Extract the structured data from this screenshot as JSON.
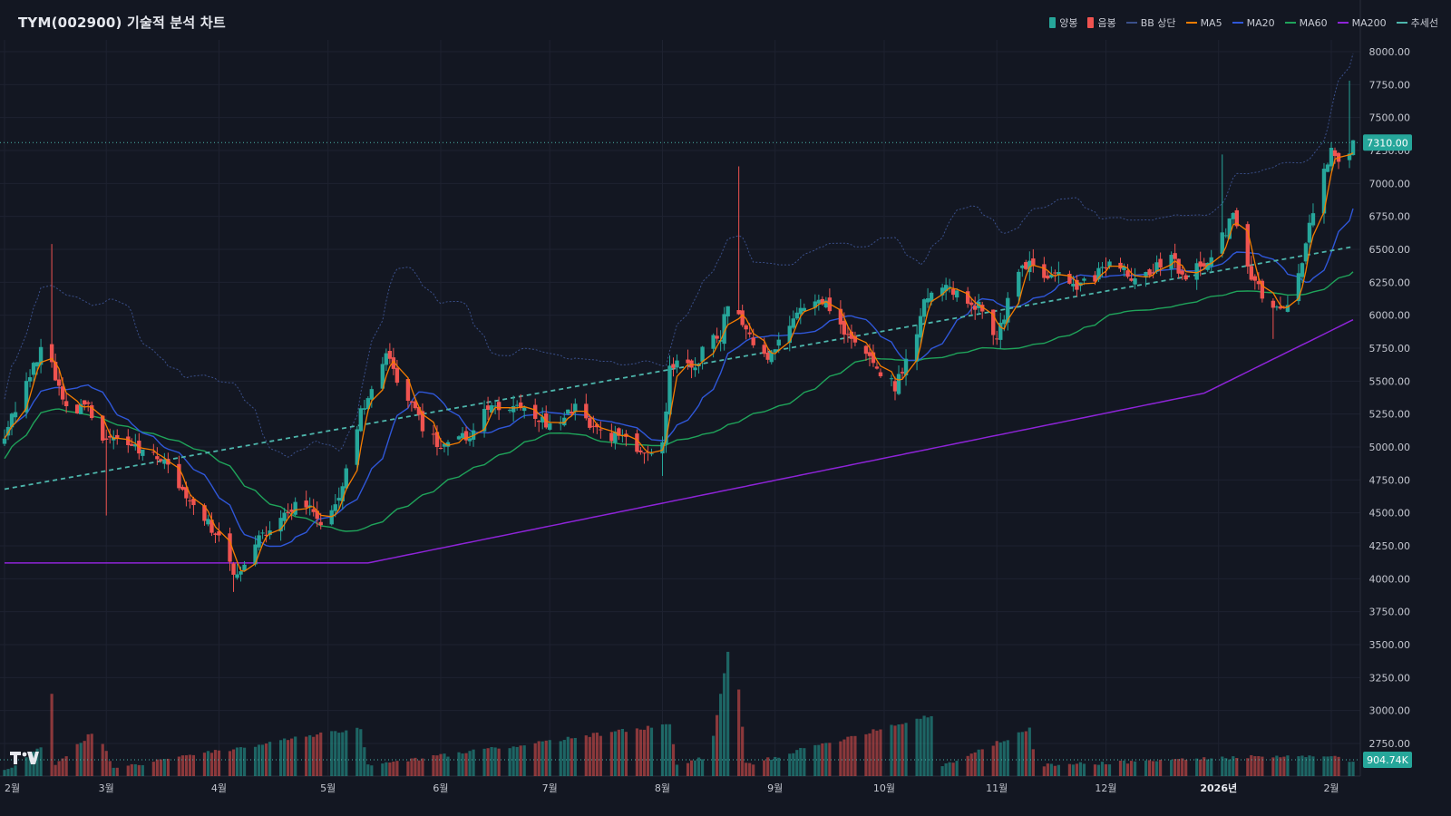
{
  "colors": {
    "background": "#131722",
    "grid": "#1e2230",
    "up": "#26a69a",
    "down": "#ef5350",
    "bb_upper": "#3a4f8a",
    "ma5": "#f57c00",
    "ma20": "#2f57d8",
    "ma60": "#1fa35a",
    "ma200": "#8e24d8",
    "trend": "#4db6ac",
    "price_tag": "#26a69a"
  },
  "chart_data": {
    "type": "candlestick",
    "title": "TYM(002900) 기술적 분석 차트",
    "legend": [
      {
        "label": "양봉",
        "style": "box",
        "color": "#26a69a"
      },
      {
        "label": "음봉",
        "style": "box",
        "color": "#ef5350"
      },
      {
        "label": "BB 상단",
        "style": "dash",
        "color": "#3a4f8a"
      },
      {
        "label": "MA5",
        "style": "line",
        "color": "#f57c00"
      },
      {
        "label": "MA20",
        "style": "line",
        "color": "#2f57d8"
      },
      {
        "label": "MA60",
        "style": "line",
        "color": "#1fa35a"
      },
      {
        "label": "MA200",
        "style": "line",
        "color": "#8e24d8"
      },
      {
        "label": "추세선",
        "style": "dash",
        "color": "#4db6ac"
      }
    ],
    "legend_position": "top-right",
    "grid": true,
    "y_range": [
      2600,
      8100
    ],
    "y_ticks": [
      "8000.00",
      "7750.00",
      "7500.00",
      "7250.00",
      "7000.00",
      "6750.00",
      "6500.00",
      "6250.00",
      "6000.00",
      "5750.00",
      "5500.00",
      "5250.00",
      "5000.00",
      "4750.00",
      "4500.00",
      "4250.00",
      "4000.00",
      "3750.00",
      "3500.00",
      "3250.00",
      "3000.00",
      "2750.00"
    ],
    "x_ticks": [
      {
        "label": "2월",
        "day": 0,
        "bold": false
      },
      {
        "label": "3월",
        "day": 28,
        "bold": false
      },
      {
        "label": "4월",
        "day": 59,
        "bold": false
      },
      {
        "label": "5월",
        "day": 89,
        "bold": false
      },
      {
        "label": "6월",
        "day": 120,
        "bold": false
      },
      {
        "label": "7월",
        "day": 150,
        "bold": false
      },
      {
        "label": "8월",
        "day": 181,
        "bold": false
      },
      {
        "label": "9월",
        "day": 212,
        "bold": false
      },
      {
        "label": "10월",
        "day": 242,
        "bold": false
      },
      {
        "label": "11월",
        "day": 273,
        "bold": false
      },
      {
        "label": "12월",
        "day": 303,
        "bold": false
      },
      {
        "label": "2026년",
        "day": 334,
        "bold": true
      },
      {
        "label": "2월",
        "day": 365,
        "bold": false
      }
    ],
    "current_price": "7310.00",
    "current_volume": "904.74K",
    "candle_keypoints": [
      [
        0,
        5100
      ],
      [
        5,
        5400
      ],
      [
        10,
        5750
      ],
      [
        13,
        5600
      ],
      [
        18,
        5250
      ],
      [
        22,
        5350
      ],
      [
        26,
        5100
      ],
      [
        30,
        5050
      ],
      [
        35,
        5000
      ],
      [
        40,
        4950
      ],
      [
        45,
        4900
      ],
      [
        50,
        4600
      ],
      [
        55,
        4450
      ],
      [
        60,
        4250
      ],
      [
        63,
        4050
      ],
      [
        66,
        4100
      ],
      [
        70,
        4300
      ],
      [
        76,
        4450
      ],
      [
        82,
        4600
      ],
      [
        88,
        4400
      ],
      [
        92,
        4600
      ],
      [
        95,
        5000
      ],
      [
        98,
        5250
      ],
      [
        102,
        5450
      ],
      [
        105,
        5750
      ],
      [
        108,
        5500
      ],
      [
        112,
        5300
      ],
      [
        116,
        5100
      ],
      [
        120,
        5000
      ],
      [
        124,
        5150
      ],
      [
        128,
        5050
      ],
      [
        132,
        5250
      ],
      [
        136,
        5300
      ],
      [
        140,
        5300
      ],
      [
        146,
        5250
      ],
      [
        150,
        5150
      ],
      [
        154,
        5250
      ],
      [
        158,
        5300
      ],
      [
        162,
        5150
      ],
      [
        166,
        5100
      ],
      [
        170,
        5050
      ],
      [
        176,
        4950
      ],
      [
        181,
        5000
      ],
      [
        183,
        5600
      ],
      [
        186,
        5650
      ],
      [
        190,
        5600
      ],
      [
        194,
        5850
      ],
      [
        197,
        5850
      ],
      [
        200,
        6200
      ],
      [
        203,
        5900
      ],
      [
        206,
        5800
      ],
      [
        210,
        5700
      ],
      [
        214,
        5800
      ],
      [
        218,
        6000
      ],
      [
        222,
        6150
      ],
      [
        226,
        6100
      ],
      [
        230,
        5900
      ],
      [
        235,
        5800
      ],
      [
        240,
        5600
      ],
      [
        245,
        5450
      ],
      [
        250,
        5750
      ],
      [
        253,
        6100
      ],
      [
        256,
        6250
      ],
      [
        260,
        6200
      ],
      [
        265,
        6100
      ],
      [
        270,
        6050
      ],
      [
        273,
        5800
      ],
      [
        276,
        6100
      ],
      [
        279,
        6350
      ],
      [
        282,
        6400
      ],
      [
        286,
        6250
      ],
      [
        290,
        6300
      ],
      [
        295,
        6200
      ],
      [
        300,
        6300
      ],
      [
        305,
        6450
      ],
      [
        310,
        6300
      ],
      [
        315,
        6300
      ],
      [
        320,
        6450
      ],
      [
        325,
        6300
      ],
      [
        330,
        6400
      ],
      [
        335,
        6600
      ],
      [
        338,
        6750
      ],
      [
        341,
        6400
      ],
      [
        345,
        6200
      ],
      [
        349,
        6050
      ],
      [
        353,
        6100
      ],
      [
        356,
        6300
      ],
      [
        359,
        6700
      ],
      [
        362,
        7000
      ],
      [
        365,
        7250
      ],
      [
        368,
        7150
      ],
      [
        371,
        7310
      ]
    ],
    "volume_keypoints": [
      [
        0,
        0.3
      ],
      [
        10,
        2.2
      ],
      [
        12,
        12.5
      ],
      [
        14,
        0.8
      ],
      [
        25,
        3.8
      ],
      [
        30,
        0.5
      ],
      [
        98,
        3.9
      ],
      [
        100,
        0.7
      ],
      [
        183,
        4.2
      ],
      [
        185,
        0.7
      ],
      [
        194,
        1.5
      ],
      [
        200,
        12.0
      ],
      [
        202,
        7.3
      ],
      [
        204,
        0.8
      ],
      [
        256,
        5.1
      ],
      [
        258,
        0.7
      ],
      [
        282,
        3.8
      ],
      [
        284,
        0.7
      ],
      [
        335,
        1.4
      ],
      [
        368,
        1.5
      ],
      [
        371,
        0.9
      ]
    ],
    "trend_line": [
      [
        0,
        4680
      ],
      [
        371,
        6520
      ]
    ]
  }
}
